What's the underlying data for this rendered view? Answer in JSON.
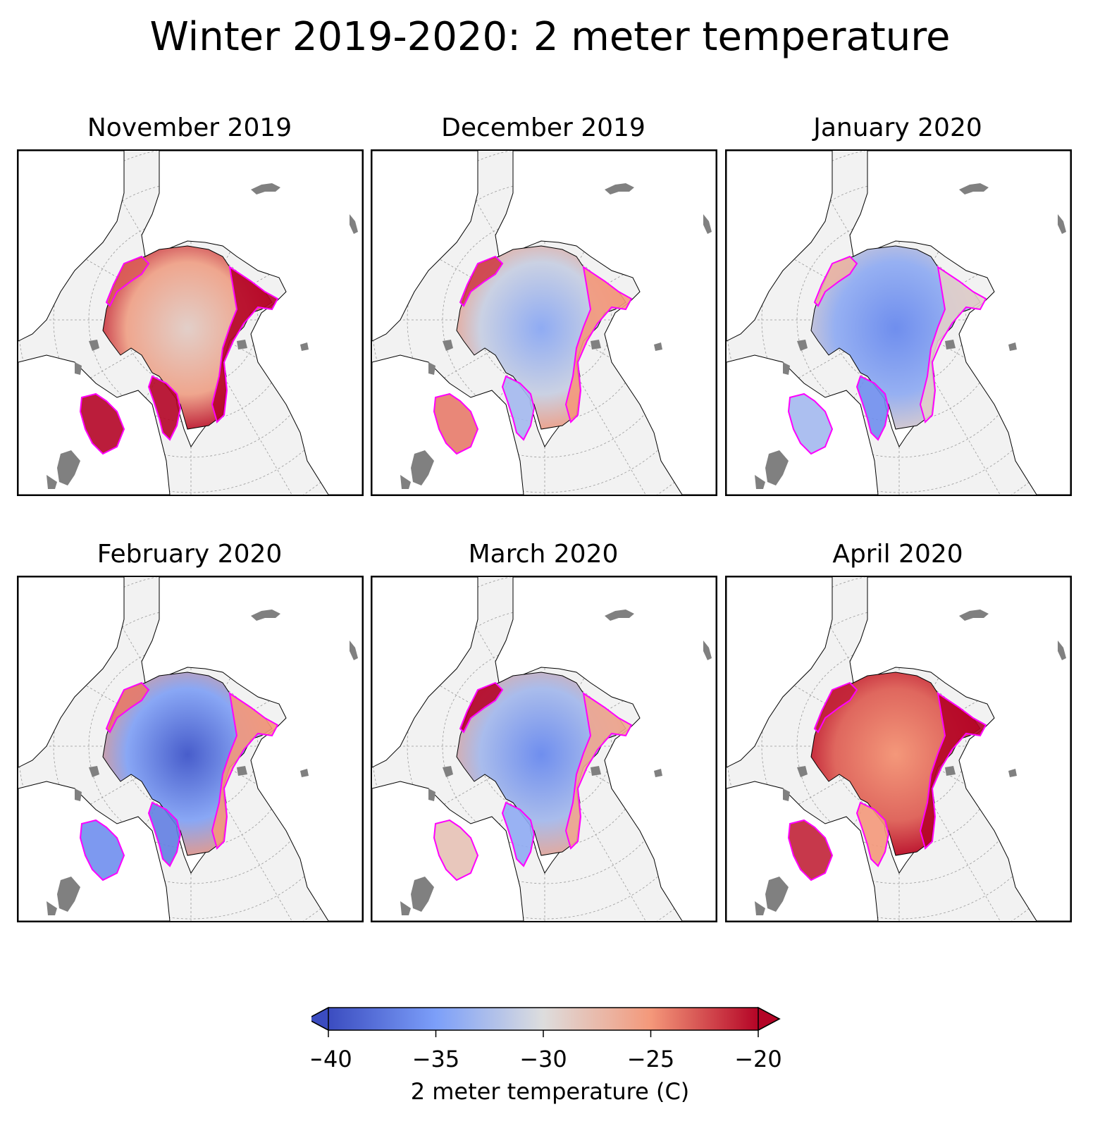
{
  "title": "Winter 2019-2020: 2 meter temperature",
  "panels": [
    {
      "title": "November 2019",
      "field": {
        "center_c": -29,
        "atlantic_c": -20,
        "pacific_c": -23,
        "channels_c": -20,
        "hudson_c": -20
      }
    },
    {
      "title": "December 2019",
      "field": {
        "center_c": -34,
        "atlantic_c": -25,
        "pacific_c": -22,
        "channels_c": -33,
        "hudson_c": -24
      }
    },
    {
      "title": "January 2020",
      "field": {
        "center_c": -36,
        "atlantic_c": -29,
        "pacific_c": -27,
        "channels_c": -36,
        "hudson_c": -33
      }
    },
    {
      "title": "February 2020",
      "field": {
        "center_c": -39,
        "atlantic_c": -25,
        "pacific_c": -24,
        "channels_c": -37,
        "hudson_c": -36
      }
    },
    {
      "title": "March 2020",
      "field": {
        "center_c": -36,
        "atlantic_c": -26,
        "pacific_c": -20,
        "channels_c": -34,
        "hudson_c": -28
      }
    },
    {
      "title": "April 2020",
      "field": {
        "center_c": -25,
        "atlantic_c": -20,
        "pacific_c": -21,
        "channels_c": -25,
        "hudson_c": -21
      }
    }
  ],
  "colorbar": {
    "colormap": "coolwarm",
    "min": -40,
    "max": -20,
    "extend": "both",
    "ticks": [
      -40,
      -35,
      -30,
      -25,
      -20
    ],
    "tick_labels": [
      "−40",
      "−35",
      "−30",
      "−25",
      "−20"
    ],
    "label": "2 meter temperature (C)"
  },
  "colors": {
    "land": "#ffffff",
    "ocean": "#f2f2f2",
    "lakes": "#808080",
    "coast": "#000000",
    "ice_edge": "#ff00ff",
    "grid": "#999999"
  }
}
